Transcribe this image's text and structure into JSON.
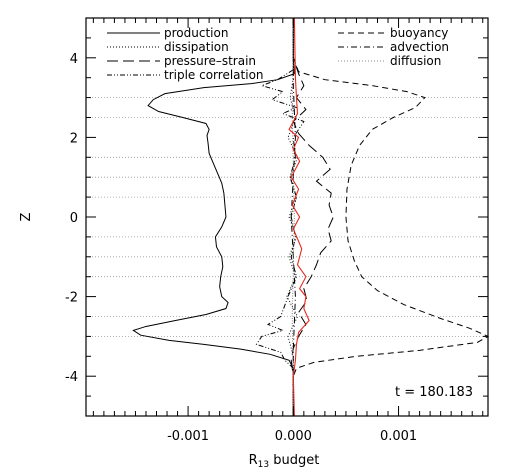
{
  "chart_data": {
    "type": "line",
    "title": "",
    "xlabel_main": "R",
    "xlabel_sub": "13",
    "xlabel_rest": " budget",
    "ylabel": "Z",
    "xlim": [
      -0.00197,
      0.00185
    ],
    "ylim": [
      -5,
      5
    ],
    "x_ticks": [
      -0.001,
      0.0,
      0.001
    ],
    "x_tick_labels": [
      "-0.001",
      "0.000",
      "0.001"
    ],
    "y_ticks": [
      -4,
      -2,
      0,
      2,
      4
    ],
    "y_tick_labels": [
      "-4",
      "-2",
      "0",
      "2",
      "4"
    ],
    "gridlines_z": [
      -3,
      -2.5,
      -1.5,
      -1,
      -0.5,
      0.5,
      1,
      1.5,
      2.5,
      3
    ],
    "annotation": "t = 180.183",
    "legend_left": [
      "production",
      "dissipation",
      "pressure–strain",
      "triple correlation"
    ],
    "legend_right": [
      "buoyancy",
      "advection",
      "diffusion"
    ],
    "series": [
      {
        "name": "production",
        "style": "solid",
        "color": "#000000",
        "points": [
          [
            0.0,
            5.0
          ],
          [
            0.0,
            4.0
          ],
          [
            1e-05,
            3.6
          ],
          [
            -0.00015,
            3.45
          ],
          [
            -0.0004,
            3.35
          ],
          [
            -0.00085,
            3.25
          ],
          [
            -0.00122,
            3.1
          ],
          [
            -0.00133,
            2.95
          ],
          [
            -0.00138,
            2.8
          ],
          [
            -0.00128,
            2.65
          ],
          [
            -0.00105,
            2.5
          ],
          [
            -0.00083,
            2.35
          ],
          [
            -0.0008,
            2.2
          ],
          [
            -0.00082,
            2.05
          ],
          [
            -0.00081,
            1.85
          ],
          [
            -0.0008,
            1.6
          ],
          [
            -0.00076,
            1.35
          ],
          [
            -0.00072,
            1.1
          ],
          [
            -0.00068,
            0.85
          ],
          [
            -0.00066,
            0.6
          ],
          [
            -0.00065,
            0.3
          ],
          [
            -0.00064,
            0.0
          ],
          [
            -0.00068,
            -0.25
          ],
          [
            -0.00074,
            -0.5
          ],
          [
            -0.00073,
            -0.75
          ],
          [
            -0.00068,
            -1.0
          ],
          [
            -0.00067,
            -1.25
          ],
          [
            -0.00069,
            -1.5
          ],
          [
            -0.0007,
            -1.75
          ],
          [
            -0.00068,
            -2.0
          ],
          [
            -0.00062,
            -2.15
          ],
          [
            -0.00064,
            -2.3
          ],
          [
            -0.00083,
            -2.45
          ],
          [
            -0.00112,
            -2.6
          ],
          [
            -0.0014,
            -2.75
          ],
          [
            -0.00152,
            -2.85
          ],
          [
            -0.00145,
            -2.97
          ],
          [
            -0.00118,
            -3.1
          ],
          [
            -0.00085,
            -3.2
          ],
          [
            -0.0005,
            -3.32
          ],
          [
            -0.00022,
            -3.45
          ],
          [
            -4e-05,
            -3.6
          ],
          [
            0.0,
            -3.8
          ],
          [
            0.0,
            -5.0
          ]
        ]
      },
      {
        "name": "dissipation",
        "style": "dotted",
        "color": "#000000",
        "points": [
          [
            0.0,
            5.0
          ],
          [
            0.0,
            3.5
          ],
          [
            -3e-05,
            3.0
          ],
          [
            2e-05,
            2.5
          ],
          [
            -5e-05,
            2.0
          ],
          [
            4e-05,
            1.5
          ],
          [
            -3e-05,
            1.0
          ],
          [
            3e-05,
            0.5
          ],
          [
            -4e-05,
            0.0
          ],
          [
            3e-05,
            -0.5
          ],
          [
            -4e-05,
            -1.0
          ],
          [
            2e-05,
            -1.5
          ],
          [
            -6e-05,
            -2.0
          ],
          [
            4e-05,
            -2.5
          ],
          [
            -5e-05,
            -3.0
          ],
          [
            0.0,
            -3.5
          ],
          [
            0.0,
            -5.0
          ]
        ]
      },
      {
        "name": "pressure–strain",
        "style": "dashed-long",
        "color": "#000000",
        "points": [
          [
            0.0,
            5.0
          ],
          [
            0.0,
            4.0
          ],
          [
            5e-05,
            3.6
          ],
          [
            0.0001,
            3.3
          ],
          [
            3e-05,
            3.0
          ],
          [
            0.00012,
            2.7
          ],
          [
            0.0,
            2.4
          ],
          [
            5e-05,
            2.1
          ],
          [
            0.00015,
            1.8
          ],
          [
            0.00028,
            1.5
          ],
          [
            0.00035,
            1.2
          ],
          [
            0.00022,
            0.9
          ],
          [
            0.00036,
            0.6
          ],
          [
            0.00034,
            0.3
          ],
          [
            0.00038,
            0.0
          ],
          [
            0.00033,
            -0.3
          ],
          [
            0.00036,
            -0.6
          ],
          [
            0.00026,
            -0.9
          ],
          [
            0.00022,
            -1.2
          ],
          [
            0.00017,
            -1.5
          ],
          [
            0.0001,
            -1.8
          ],
          [
            0.00013,
            -2.1
          ],
          [
            5e-05,
            -2.4
          ],
          [
            0.00012,
            -2.7
          ],
          [
            5e-05,
            -3.0
          ],
          [
            0.0,
            -3.3
          ],
          [
            -2e-05,
            -3.6
          ],
          [
            0.0,
            -4.0
          ],
          [
            0.0,
            -5.0
          ]
        ]
      },
      {
        "name": "triple correlation",
        "style": "dashdotdot",
        "color": "#000000",
        "points": [
          [
            0.0,
            5.0
          ],
          [
            0.0,
            3.7
          ],
          [
            -0.00015,
            3.45
          ],
          [
            -0.0003,
            3.3
          ],
          [
            -0.0001,
            3.15
          ],
          [
            -0.0002,
            2.95
          ],
          [
            3e-05,
            2.75
          ],
          [
            -0.0001,
            2.6
          ],
          [
            0.0001,
            2.4
          ],
          [
            0.0,
            2.0
          ],
          [
            2e-05,
            1.5
          ],
          [
            -3e-05,
            1.0
          ],
          [
            3e-05,
            0.5
          ],
          [
            -2e-05,
            0.0
          ],
          [
            2e-05,
            -0.5
          ],
          [
            -2e-05,
            -1.0
          ],
          [
            3e-05,
            -1.5
          ],
          [
            -5e-05,
            -2.0
          ],
          [
            -0.00012,
            -2.5
          ],
          [
            -0.00024,
            -2.7
          ],
          [
            -0.0001,
            -2.85
          ],
          [
            -0.0003,
            -3.0
          ],
          [
            -0.00035,
            -3.2
          ],
          [
            -0.00012,
            -3.4
          ],
          [
            -8e-05,
            -3.6
          ],
          [
            0.0,
            -3.8
          ],
          [
            0.0,
            -5.0
          ]
        ]
      },
      {
        "name": "buoyancy",
        "style": "dashed",
        "color": "#000000",
        "points": [
          [
            0.0,
            5.0
          ],
          [
            0.0,
            4.0
          ],
          [
            5e-05,
            3.65
          ],
          [
            0.0003,
            3.45
          ],
          [
            0.00075,
            3.3
          ],
          [
            0.00108,
            3.15
          ],
          [
            0.00125,
            3.0
          ],
          [
            0.00116,
            2.75
          ],
          [
            0.00095,
            2.5
          ],
          [
            0.00075,
            2.2
          ],
          [
            0.00063,
            1.8
          ],
          [
            0.00055,
            1.3
          ],
          [
            0.00051,
            0.7
          ],
          [
            0.0005,
            0.0
          ],
          [
            0.00052,
            -0.6
          ],
          [
            0.00058,
            -1.1
          ],
          [
            0.00065,
            -1.5
          ],
          [
            0.0008,
            -1.85
          ],
          [
            0.00105,
            -2.2
          ],
          [
            0.0014,
            -2.55
          ],
          [
            0.00168,
            -2.8
          ],
          [
            0.00185,
            -3.0
          ],
          [
            0.00175,
            -3.15
          ],
          [
            0.0012,
            -3.35
          ],
          [
            0.0006,
            -3.5
          ],
          [
            0.0002,
            -3.65
          ],
          [
            3e-05,
            -3.8
          ],
          [
            0.0,
            -4.0
          ],
          [
            0.0,
            -5.0
          ]
        ]
      },
      {
        "name": "advection",
        "style": "dashdot",
        "color": "#000000",
        "points": [
          [
            0.0,
            5.0
          ],
          [
            0.0,
            3.3
          ],
          [
            2e-05,
            2.0
          ],
          [
            -2e-05,
            0.0
          ],
          [
            2e-05,
            -2.0
          ],
          [
            0.0,
            -3.3
          ],
          [
            0.0,
            -5.0
          ]
        ]
      },
      {
        "name": "diffusion",
        "style": "dotted-fine",
        "color": "#000000",
        "points": [
          [
            0.0,
            5.0
          ],
          [
            -1e-05,
            2.5
          ],
          [
            1e-05,
            0.0
          ],
          [
            -1e-05,
            -2.5
          ],
          [
            0.0,
            -5.0
          ]
        ]
      },
      {
        "name": "",
        "style": "solid",
        "color": "#e8281e",
        "points": [
          [
            1e-05,
            5.0
          ],
          [
            2e-05,
            3.5
          ],
          [
            3e-05,
            3.0
          ],
          [
            4e-05,
            2.6
          ],
          [
            -4e-05,
            2.2
          ],
          [
            5e-05,
            2.0
          ],
          [
            0.0,
            1.7
          ],
          [
            6e-05,
            1.4
          ],
          [
            -2e-05,
            1.0
          ],
          [
            5e-05,
            0.7
          ],
          [
            -1e-05,
            0.3
          ],
          [
            6e-05,
            0.0
          ],
          [
            0.0,
            -0.3
          ],
          [
            8e-05,
            -0.8
          ],
          [
            4e-05,
            -1.2
          ],
          [
            0.00012,
            -1.5
          ],
          [
            6e-05,
            -1.8
          ],
          [
            0.00012,
            -2.0
          ],
          [
            0.0001,
            -2.3
          ],
          [
            0.00015,
            -2.6
          ],
          [
            5e-05,
            -2.9
          ],
          [
            3e-05,
            -3.2
          ],
          [
            2e-05,
            -3.6
          ],
          [
            0.0,
            -4.0
          ],
          [
            1e-05,
            -5.0
          ]
        ]
      }
    ]
  }
}
